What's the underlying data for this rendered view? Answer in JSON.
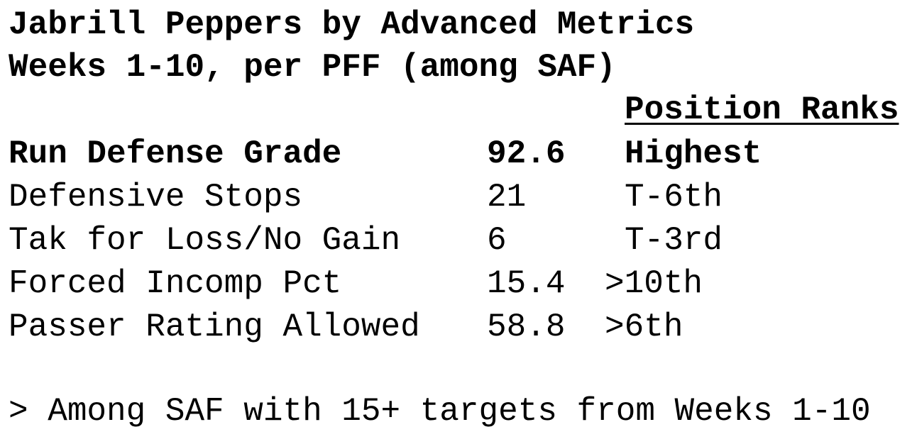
{
  "header": {
    "title": [
      "Jabrill Peppers by Advanced Metrics",
      "Weeks 1-10, per PFF (among SAF)"
    ]
  },
  "table": {
    "column_header": "Position Ranks",
    "rows": [
      {
        "label": "Run Defense Grade",
        "value": 92.6,
        "rank": "Highest"
      },
      {
        "label": "Defensive Stops",
        "value": 21,
        "rank": "T-6th"
      },
      {
        "label": "Tak for Loss/No Gain",
        "value": 6,
        "rank": "T-3rd"
      },
      {
        "label": "Forced Incomp Pct",
        "value": 15.4,
        "rank": ">10th"
      },
      {
        "label": "Passer Rating Allowed",
        "value": 58.8,
        "rank": ">6th"
      }
    ]
  },
  "footnote": "> Among SAF with 15+ targets from Weeks 1-10"
}
